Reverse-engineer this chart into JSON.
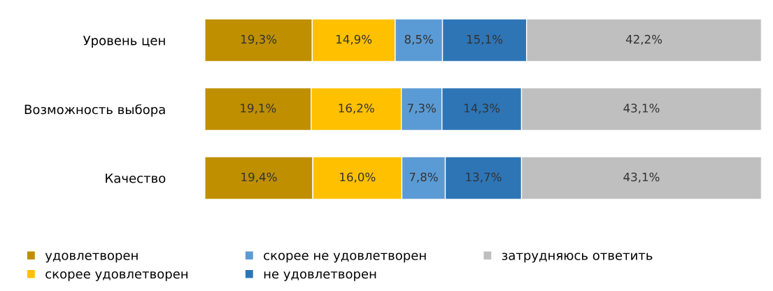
{
  "chart_data": {
    "type": "bar",
    "orientation": "horizontal",
    "stacked": true,
    "categories": [
      "Уровень цен",
      "Возможность выбора",
      "Качество"
    ],
    "xlim": [
      0,
      100
    ],
    "tick_labels": "y",
    "grid": false,
    "legend": "bottom",
    "series": [
      {
        "name": "удовлетворен",
        "color": "#bf8f00",
        "values": [
          19.3,
          19.1,
          19.4
        ],
        "value_labels": [
          "19,3%",
          "19,1%",
          "19,4%"
        ]
      },
      {
        "name": "скорее удовлетворен",
        "color": "#ffc000",
        "values": [
          14.9,
          16.2,
          16.0
        ],
        "value_labels": [
          "14,9%",
          "16,2%",
          "16,0%"
        ]
      },
      {
        "name": "скорее не удовлетворен",
        "color": "#5b9bd5",
        "values": [
          8.5,
          7.3,
          7.8
        ],
        "value_labels": [
          "8,5%",
          "7,3%",
          "7,8%"
        ]
      },
      {
        "name": "не удовлетворен",
        "color": "#2e75b6",
        "values": [
          15.1,
          14.3,
          13.7
        ],
        "value_labels": [
          "15,1%",
          "14,3%",
          "13,7%"
        ]
      },
      {
        "name": "затрудняюсь ответить",
        "color": "#bfbfbf",
        "values": [
          42.2,
          43.1,
          43.1
        ],
        "value_labels": [
          "42,2%",
          "43,1%",
          "43,1%"
        ]
      }
    ]
  }
}
